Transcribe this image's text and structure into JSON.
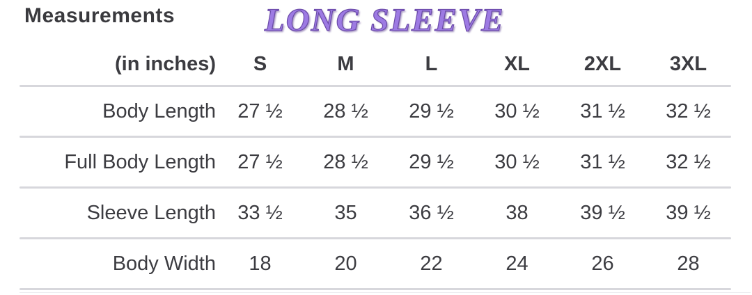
{
  "title": "LONG SLEEVE",
  "table": {
    "heading": "Measurements",
    "unit_label": "(in inches)",
    "sizes": [
      "S",
      "M",
      "L",
      "XL",
      "2XL",
      "3XL"
    ],
    "rows": [
      {
        "label": "Body Length",
        "values": [
          "27 ½",
          "28 ½",
          "29 ½",
          "30 ½",
          "31 ½",
          "32 ½"
        ]
      },
      {
        "label": "Full Body Length",
        "values": [
          "27 ½",
          "28 ½",
          "29 ½",
          "30 ½",
          "31 ½",
          "32 ½"
        ]
      },
      {
        "label": "Sleeve Length",
        "values": [
          "33 ½",
          "35",
          "36 ½",
          "38",
          "39 ½",
          "39 ½"
        ]
      },
      {
        "label": "Body Width",
        "values": [
          "18",
          "20",
          "22",
          "24",
          "26",
          "28"
        ]
      }
    ]
  },
  "colors": {
    "title_fill": "#9d7ae3",
    "title_outline": "#6b4aa8",
    "text": "#3c3c41",
    "divider": "#d7d7dc"
  },
  "chart_data": {
    "type": "table",
    "title": "LONG SLEEVE",
    "subtitle": "Measurements (in inches)",
    "columns": [
      "S",
      "M",
      "L",
      "XL",
      "2XL",
      "3XL"
    ],
    "rows": [
      {
        "label": "Body Length",
        "values": [
          27.5,
          28.5,
          29.5,
          30.5,
          31.5,
          32.5
        ]
      },
      {
        "label": "Full Body Length",
        "values": [
          27.5,
          28.5,
          29.5,
          30.5,
          31.5,
          32.5
        ]
      },
      {
        "label": "Sleeve Length",
        "values": [
          33.5,
          35,
          36.5,
          38,
          39.5,
          39.5
        ]
      },
      {
        "label": "Body Width",
        "values": [
          18,
          20,
          22,
          24,
          26,
          28
        ]
      }
    ]
  }
}
